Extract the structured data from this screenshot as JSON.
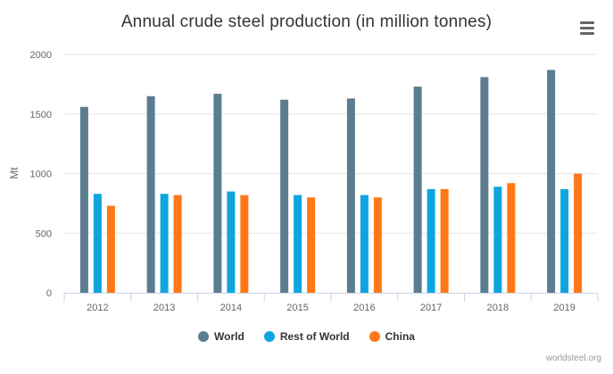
{
  "chart_data": {
    "type": "bar",
    "title": "Annual crude steel production (in million tonnes)",
    "ylabel": "Mt",
    "xlabel": "",
    "ylim": [
      0,
      2000
    ],
    "yticks": [
      0,
      500,
      1000,
      1500,
      2000
    ],
    "categories": [
      "2012",
      "2013",
      "2014",
      "2015",
      "2016",
      "2017",
      "2018",
      "2019"
    ],
    "series": [
      {
        "name": "World",
        "color": "#5b7d8f",
        "values": [
          1560,
          1650,
          1670,
          1620,
          1630,
          1730,
          1810,
          1870
        ]
      },
      {
        "name": "Rest of World",
        "color": "#0ea5df",
        "values": [
          830,
          830,
          850,
          820,
          820,
          870,
          890,
          870
        ]
      },
      {
        "name": "China",
        "color": "#ff7716",
        "values": [
          730,
          820,
          820,
          800,
          800,
          870,
          920,
          1000
        ]
      }
    ],
    "grid": true,
    "legend_position": "bottom-center"
  },
  "menu": {
    "icon": "hamburger-menu-icon"
  },
  "credits": {
    "text": "worldsteel.org"
  }
}
